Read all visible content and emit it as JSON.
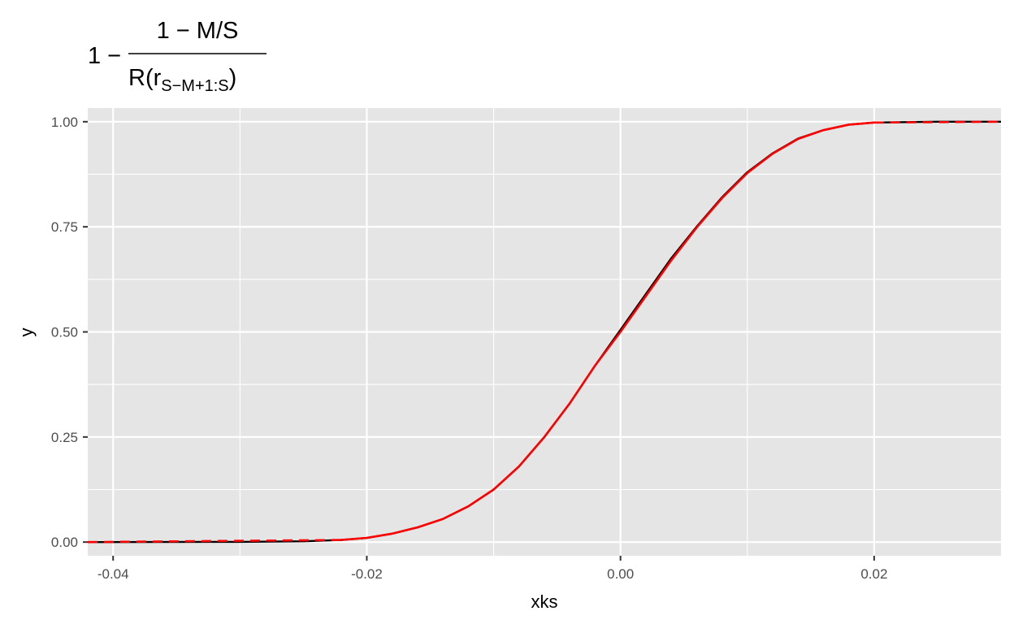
{
  "chart_data": {
    "type": "line",
    "title": {
      "prefix": "1 −",
      "numerator": "1 − M/S",
      "denominator_base": "R(r",
      "denominator_sub": "S−M+1:S",
      "denominator_close": ")"
    },
    "xlabel": "xks",
    "ylabel": "y",
    "xlim": [
      -0.042,
      0.03
    ],
    "ylim": [
      -0.0325,
      1.0325
    ],
    "x_ticks": [
      -0.04,
      -0.02,
      0.0,
      0.02
    ],
    "x_tick_labels": [
      "-0.04",
      "-0.02",
      "0.00",
      "0.02"
    ],
    "y_ticks": [
      0.0,
      0.25,
      0.5,
      0.75,
      1.0
    ],
    "y_tick_labels": [
      "0.00",
      "0.25",
      "0.50",
      "0.75",
      "1.00"
    ],
    "grid": true,
    "legend": "none",
    "series": [
      {
        "color": "#000000",
        "style": "solid",
        "x": [
          -0.042,
          -0.03,
          -0.025,
          -0.022,
          -0.02,
          -0.018,
          -0.016,
          -0.014,
          -0.012,
          -0.01,
          -0.008,
          -0.006,
          -0.004,
          -0.002,
          0.0,
          0.002,
          0.004,
          0.006,
          0.008,
          0.01,
          0.012,
          0.014,
          0.016,
          0.018,
          0.02,
          0.025,
          0.03
        ],
        "y": [
          0.0,
          0.0005,
          0.002,
          0.005,
          0.01,
          0.02,
          0.035,
          0.055,
          0.085,
          0.125,
          0.18,
          0.25,
          0.33,
          0.42,
          0.505,
          0.59,
          0.675,
          0.75,
          0.82,
          0.88,
          0.925,
          0.96,
          0.98,
          0.993,
          0.998,
          1.0,
          1.0
        ]
      },
      {
        "color": "#ff0000",
        "style": "dashed-ends",
        "x": [
          -0.042,
          -0.03,
          -0.025,
          -0.022,
          -0.02,
          -0.018,
          -0.016,
          -0.014,
          -0.012,
          -0.01,
          -0.008,
          -0.006,
          -0.004,
          -0.002,
          0.0,
          0.002,
          0.004,
          0.006,
          0.008,
          0.01,
          0.012,
          0.014,
          0.016,
          0.018,
          0.02,
          0.025,
          0.03
        ],
        "y": [
          0.0,
          0.0005,
          0.002,
          0.005,
          0.01,
          0.02,
          0.035,
          0.055,
          0.085,
          0.125,
          0.18,
          0.25,
          0.33,
          0.42,
          0.5,
          0.585,
          0.67,
          0.748,
          0.818,
          0.878,
          0.924,
          0.959,
          0.98,
          0.993,
          0.998,
          1.0,
          1.0
        ]
      }
    ],
    "colors": {
      "panel": "#e5e5e5",
      "grid": "#ffffff",
      "tick": "#333333"
    }
  }
}
